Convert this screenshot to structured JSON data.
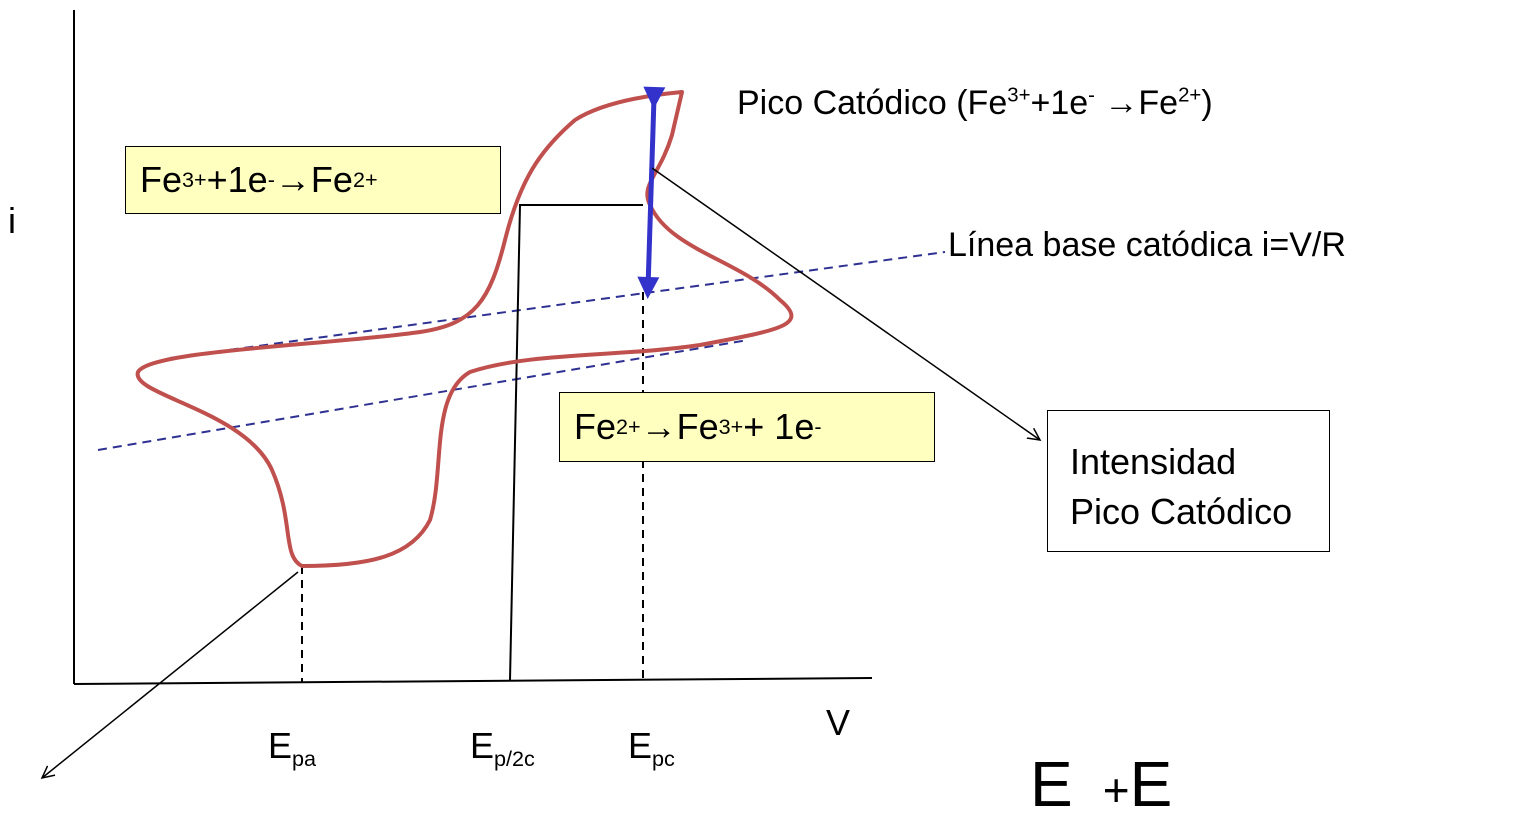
{
  "axes": {
    "y_label": "i",
    "x_label": "V"
  },
  "cathodic_peak_label": {
    "text": "Pico Catódico (Fe",
    "sup1": "3+",
    "mid": "+1e",
    "sup2": "-",
    "arrow": " →Fe",
    "sup3": "2+",
    "end": ")"
  },
  "baseline_label": "Línea base catódica i=V/R",
  "reduction_box": {
    "fe": "Fe",
    "sup1": "3+",
    "mid": "+1e",
    "sup2": "-",
    "arrow": " →Fe",
    "sup3": "2+"
  },
  "oxidation_box": {
    "fe": "Fe",
    "sup1": "2+",
    "arrow": "→Fe",
    "sup2": "3+",
    "mid": " + 1e",
    "sup3": "-"
  },
  "intensity_box": {
    "line1": "Intensidad",
    "line2": "Pico Catódico"
  },
  "x_ticks": [
    {
      "base": "E",
      "sub": "pa"
    },
    {
      "base": "E",
      "sub": "p/2c"
    },
    {
      "base": "E",
      "sub": "pc"
    }
  ],
  "bottom_fragment": "E",
  "colors": {
    "curve": "#c0504d",
    "baseline": "#2e3192",
    "peak_arrow": "#3333cc",
    "box_fill": "#ffffc0"
  }
}
